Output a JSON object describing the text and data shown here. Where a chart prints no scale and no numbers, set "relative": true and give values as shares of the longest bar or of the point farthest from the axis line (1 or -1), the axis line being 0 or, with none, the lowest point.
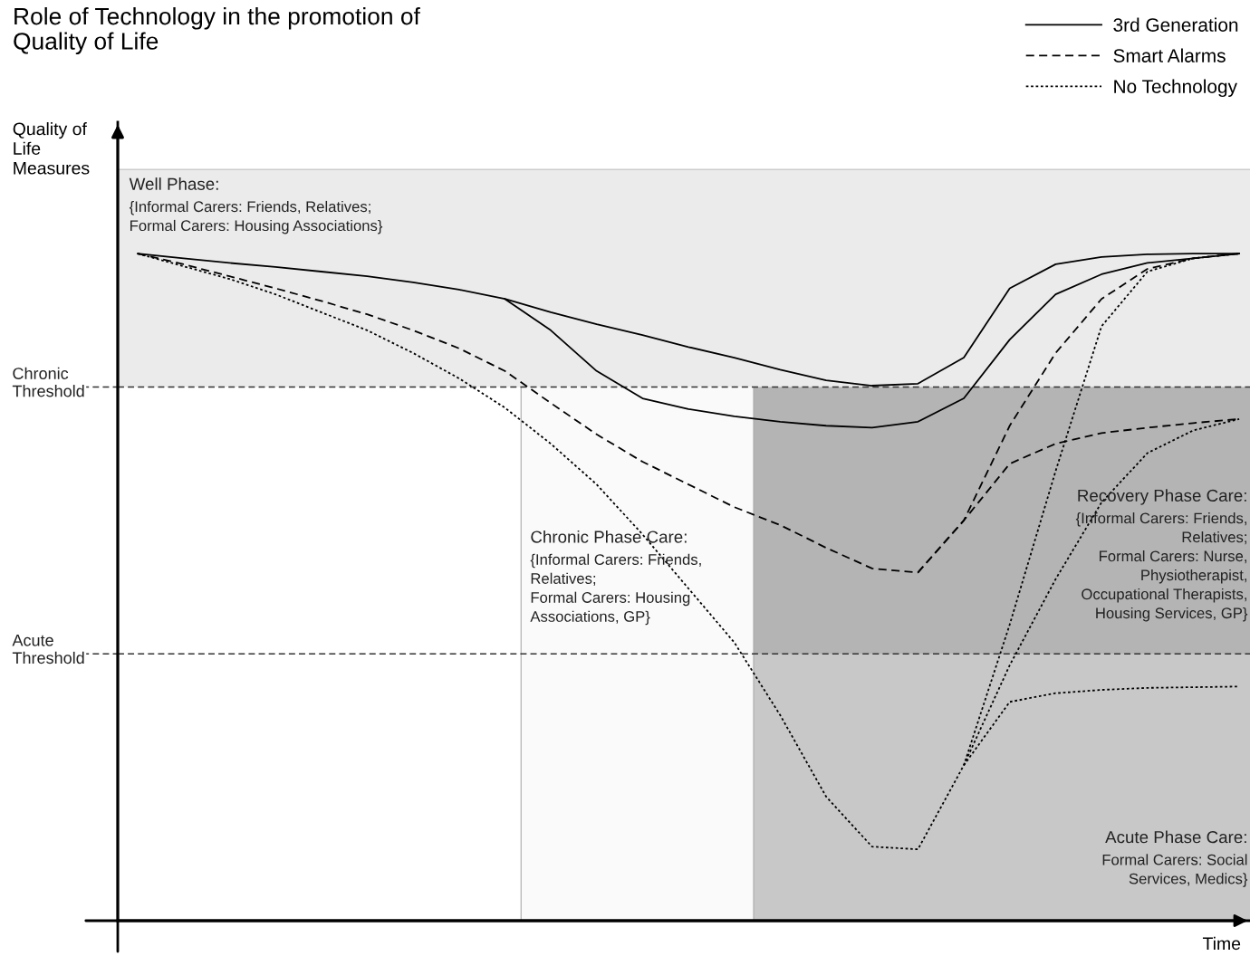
{
  "chart_data": {
    "type": "line",
    "title": "Role of Technology in the promotion of\nQuality of Life",
    "xlabel": "Time",
    "ylabel": "Quality of\nLife\nMeasures",
    "relative": true,
    "legend": "top right",
    "grid": false,
    "categories": [
      null,
      null,
      null,
      null,
      null,
      null,
      null,
      null,
      null,
      null,
      null,
      null,
      null,
      null,
      null,
      null,
      null,
      null,
      null,
      null,
      null,
      null,
      null,
      null,
      null
    ],
    "series": [
      {
        "name": "3rd Generation",
        "color": "#000000",
        "line_style": "solid",
        "values": [
          1.0,
          0.993,
          0.986,
          0.98,
          0.973,
          0.966,
          0.957,
          0.946,
          0.932,
          0.912,
          0.894,
          0.878,
          0.86,
          0.844,
          0.826,
          0.81,
          0.802,
          0.805,
          0.844,
          0.948,
          0.984,
          0.995,
          0.999,
          1.0,
          1.0
        ]
      },
      {
        "color": "#000000",
        "line_style": "solid",
        "values": [
          null,
          null,
          null,
          null,
          null,
          null,
          null,
          null,
          0.932,
          0.885,
          0.824,
          0.783,
          0.767,
          0.756,
          0.748,
          0.742,
          0.739,
          0.748,
          0.783,
          0.871,
          0.939,
          0.969,
          0.986,
          0.993,
          1.0
        ]
      },
      {
        "name": "Smart Alarms",
        "color": "#000000",
        "line_style": "dashed",
        "values": [
          1.0,
          0.984,
          0.966,
          0.948,
          0.929,
          0.909,
          0.885,
          0.858,
          0.824,
          0.776,
          0.729,
          0.688,
          0.654,
          0.62,
          0.593,
          0.559,
          0.528,
          0.522,
          0.6,
          0.742,
          0.851,
          0.932,
          0.977,
          0.993,
          1.0
        ]
      },
      {
        "color": "#000000",
        "line_style": "dashed",
        "values": [
          null,
          null,
          null,
          null,
          null,
          null,
          null,
          null,
          null,
          null,
          null,
          null,
          null,
          null,
          null,
          null,
          null,
          0.522,
          0.6,
          0.685,
          0.715,
          0.731,
          0.739,
          0.746,
          0.752
        ]
      },
      {
        "name": "No Technology",
        "color": "#000000",
        "line_style": "dotted",
        "values": [
          1.0,
          0.981,
          0.962,
          0.939,
          0.912,
          0.885,
          0.851,
          0.813,
          0.769,
          0.715,
          0.654,
          0.579,
          0.498,
          0.417,
          0.308,
          0.186,
          0.111,
          0.107,
          0.233,
          0.444,
          0.674,
          0.891,
          0.973,
          0.993,
          1.0
        ]
      },
      {
        "color": "#000000",
        "line_style": "dotted",
        "values": [
          null,
          null,
          null,
          null,
          null,
          null,
          null,
          null,
          null,
          null,
          null,
          null,
          null,
          null,
          null,
          null,
          null,
          null,
          0.233,
          0.383,
          0.512,
          0.627,
          0.701,
          0.735,
          0.752
        ]
      },
      {
        "color": "#000000",
        "line_style": "dotted",
        "values": [
          null,
          null,
          null,
          null,
          null,
          null,
          null,
          null,
          null,
          null,
          null,
          null,
          null,
          null,
          null,
          null,
          null,
          null,
          0.233,
          0.328,
          0.341,
          0.346,
          0.349,
          0.35,
          0.351
        ]
      }
    ],
    "ref_lines": [
      {
        "axis": "y",
        "value": 0.8,
        "label": "Chronic\nThreshold",
        "color": "#333333",
        "line_style": "dashed"
      },
      {
        "axis": "y",
        "value": 0.4,
        "label": "Acute\nThreshold",
        "color": "#333333",
        "line_style": "dashed"
      }
    ],
    "bands": [
      {
        "axis": "y",
        "from": 0.8,
        "to": 1.126,
        "label": "Well Phase:\n{Informal Carers: Friends, Relatives;\nFormal Carers: Housing Associations}",
        "color": "#ebebeb"
      },
      {
        "axis": "y",
        "from": 0.4,
        "to": 0.8,
        "label": "Recovery Phase Care:\n{Informal Carers: Friends,\nRelatives;\nFormal Carers: Nurse,\nPhysiotherapist,\nOccupational Therapists,\nHousing Services, GP}",
        "color": "#b4b4b4"
      }
    ],
    "annotations": [
      "Chronic Phase Care:\n{Informal Carers: Friends,\nRelatives;\nFormal Carers: Housing\nAssociations, GP}",
      "Acute Phase Care:\nFormal Carers: Social\nServices, Medics}"
    ]
  }
}
